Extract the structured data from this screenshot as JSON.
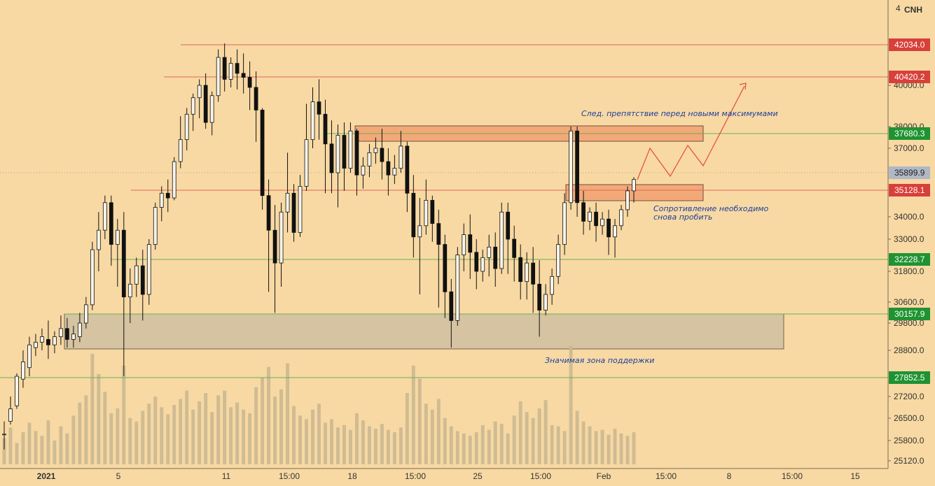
{
  "header": {
    "currency": "CNH",
    "corner_glyph": "4"
  },
  "colors": {
    "background": "#f8d9a3",
    "candle": "#111111",
    "volume": "#c9b691",
    "resistance_line": "#e0665a",
    "support_line": "#6ab04c",
    "red_badge": "#d8403a",
    "green_badge": "#1f9331",
    "price_badge": "#b0b8c6",
    "zone_fill": "#f3a977",
    "support_zone_fill": "#d6c3a1",
    "arrow": "#e44a3a",
    "annotation": "#1c3f9e"
  },
  "annotations": {
    "next_obstacle": "След. препятствие перед новыми максимумами",
    "resistance_line1": "Сопротивление необходимо",
    "resistance_line2": "снова пробить",
    "support_zone": "Значимая зона поддержки"
  },
  "chart_data": {
    "type": "candlestick",
    "ylim": [
      24850,
      43300
    ],
    "y_ticks": [
      {
        "value": 40000,
        "label": "40000.0"
      },
      {
        "value": 38000,
        "label": "38000.0"
      },
      {
        "value": 37000,
        "label": "37000.0"
      },
      {
        "value": 34000,
        "label": "34000.0"
      },
      {
        "value": 33000,
        "label": "33000.0"
      },
      {
        "value": 31800,
        "label": "31800.0"
      },
      {
        "value": 30600,
        "label": "30600.0"
      },
      {
        "value": 29800,
        "label": "29800.0"
      },
      {
        "value": 28800,
        "label": "28800.0"
      },
      {
        "value": 27200,
        "label": "27200.0"
      },
      {
        "value": 26500,
        "label": "26500.0"
      },
      {
        "value": 25800,
        "label": "25800.0"
      },
      {
        "value": 25120,
        "label": "25120.0"
      }
    ],
    "x_labels": [
      "2021",
      "5",
      "11",
      "15:00",
      "18",
      "15:00",
      "25",
      "15:00",
      "Feb",
      "15:00",
      "8",
      "15:00",
      "15"
    ],
    "levels": [
      {
        "value": 42034.0,
        "label": "42034.0",
        "kind": "resistance"
      },
      {
        "value": 40420.2,
        "label": "40420.2",
        "kind": "resistance"
      },
      {
        "value": 37680.3,
        "label": "37680.3",
        "kind": "support"
      },
      {
        "value": 35899.9,
        "label": "35899.9",
        "kind": "current"
      },
      {
        "value": 35128.1,
        "label": "35128.1",
        "kind": "resistance"
      },
      {
        "value": 32228.7,
        "label": "32228.7",
        "kind": "support"
      },
      {
        "value": 30157.9,
        "label": "30157.9",
        "kind": "support"
      },
      {
        "value": 27852.5,
        "label": "27852.5",
        "kind": "support"
      }
    ],
    "zones": [
      {
        "name": "next obstacle zone",
        "from": 37450,
        "to": 38000
      },
      {
        "name": "resistance zone",
        "from": 34750,
        "to": 35450
      },
      {
        "name": "support zone",
        "from": 28880,
        "to": 30150
      }
    ],
    "projection": [
      35900,
      37050,
      35670,
      37080,
      36400,
      39960
    ],
    "candles": [
      [
        26.0,
        26.4,
        26.0,
        25.5
      ],
      [
        26.4,
        27.2,
        26.8,
        26.3
      ],
      [
        26.9,
        28.0,
        27.9,
        26.8
      ],
      [
        27.8,
        28.8,
        28.4,
        27.5
      ],
      [
        28.2,
        29.3,
        29.0,
        27.9
      ],
      [
        28.9,
        29.4,
        29.1,
        28.6
      ],
      [
        29.1,
        29.6,
        29.3,
        28.8
      ],
      [
        29.2,
        29.9,
        29.0,
        28.5
      ],
      [
        29.0,
        29.5,
        29.3,
        28.7
      ],
      [
        29.3,
        30.1,
        29.6,
        29.0
      ],
      [
        29.6,
        30.0,
        29.2,
        28.9
      ],
      [
        29.2,
        29.7,
        29.4,
        28.9
      ],
      [
        29.3,
        30.2,
        29.8,
        29.1
      ],
      [
        29.8,
        30.8,
        30.5,
        29.6
      ],
      [
        30.5,
        32.9,
        32.6,
        30.3
      ],
      [
        32.6,
        34.2,
        33.4,
        31.8
      ],
      [
        33.4,
        34.9,
        34.6,
        33.0
      ],
      [
        34.6,
        34.9,
        32.8,
        32.0
      ],
      [
        32.8,
        33.9,
        33.4,
        31.2
      ],
      [
        33.4,
        34.2,
        30.8,
        27.9
      ],
      [
        30.8,
        31.9,
        31.3,
        29.8
      ],
      [
        31.3,
        32.3,
        32.0,
        30.8
      ],
      [
        32.0,
        32.6,
        30.9,
        29.9
      ],
      [
        30.9,
        33.0,
        32.8,
        30.5
      ],
      [
        32.8,
        34.6,
        34.4,
        32.6
      ],
      [
        34.4,
        35.3,
        35.0,
        33.8
      ],
      [
        35.0,
        35.6,
        34.8,
        34.2
      ],
      [
        34.8,
        36.6,
        36.4,
        34.7
      ],
      [
        36.4,
        38.5,
        37.4,
        36.1
      ],
      [
        37.4,
        38.9,
        38.6,
        36.9
      ],
      [
        38.6,
        39.6,
        39.4,
        37.8
      ],
      [
        39.4,
        40.3,
        40.0,
        38.4
      ],
      [
        40.0,
        40.6,
        38.2,
        37.9
      ],
      [
        38.2,
        39.7,
        39.5,
        37.6
      ],
      [
        39.5,
        41.8,
        41.4,
        39.2
      ],
      [
        41.4,
        42.1,
        40.3,
        39.7
      ],
      [
        40.3,
        41.4,
        41.1,
        39.9
      ],
      [
        41.1,
        41.8,
        40.6,
        39.8
      ],
      [
        40.6,
        41.6,
        40.4,
        39.6
      ],
      [
        40.4,
        41.2,
        39.9,
        38.8
      ],
      [
        39.9,
        40.7,
        38.8,
        37.3
      ],
      [
        38.8,
        38.9,
        34.9,
        34.3
      ],
      [
        34.9,
        35.6,
        33.4,
        31.0
      ],
      [
        33.4,
        34.5,
        32.1,
        30.2
      ],
      [
        32.1,
        34.6,
        34.2,
        31.2
      ],
      [
        34.2,
        36.8,
        35.0,
        33.3
      ],
      [
        35.0,
        35.4,
        33.3,
        32.9
      ],
      [
        33.3,
        35.8,
        35.3,
        33.1
      ],
      [
        35.3,
        39.1,
        37.4,
        35.1
      ],
      [
        37.4,
        39.9,
        39.2,
        37.0
      ],
      [
        39.2,
        40.3,
        38.6,
        37.4
      ],
      [
        38.6,
        39.3,
        37.2,
        35.0
      ],
      [
        37.2,
        38.3,
        35.9,
        35.0
      ],
      [
        35.9,
        38.1,
        37.6,
        34.4
      ],
      [
        37.6,
        38.2,
        36.1,
        35.1
      ],
      [
        36.1,
        38.2,
        37.8,
        35.9
      ],
      [
        37.8,
        37.9,
        35.8,
        34.9
      ],
      [
        35.8,
        36.6,
        36.2,
        35.2
      ],
      [
        36.2,
        37.2,
        36.8,
        35.7
      ],
      [
        36.8,
        37.5,
        37.0,
        36.3
      ],
      [
        37.0,
        37.9,
        36.4,
        35.6
      ],
      [
        36.4,
        37.0,
        35.8,
        34.9
      ],
      [
        35.8,
        36.7,
        36.1,
        35.4
      ],
      [
        36.1,
        37.8,
        37.1,
        35.9
      ],
      [
        37.1,
        37.3,
        35.0,
        34.2
      ],
      [
        35.0,
        35.8,
        33.1,
        32.3
      ],
      [
        33.1,
        34.8,
        33.6,
        30.9
      ],
      [
        33.6,
        35.6,
        34.7,
        33.2
      ],
      [
        34.7,
        34.9,
        33.7,
        32.9
      ],
      [
        33.7,
        34.3,
        32.8,
        30.4
      ],
      [
        32.8,
        33.2,
        31.0,
        30.0
      ],
      [
        31.0,
        31.5,
        29.9,
        28.9
      ],
      [
        29.9,
        32.7,
        32.4,
        29.7
      ],
      [
        32.4,
        33.7,
        33.2,
        31.8
      ],
      [
        33.2,
        34.1,
        32.5,
        31.5
      ],
      [
        32.5,
        33.0,
        31.8,
        31.1
      ],
      [
        31.8,
        32.6,
        32.3,
        31.4
      ],
      [
        32.3,
        33.2,
        32.7,
        31.6
      ],
      [
        32.7,
        33.3,
        31.9,
        31.2
      ],
      [
        31.9,
        34.6,
        34.2,
        31.7
      ],
      [
        34.2,
        34.6,
        33.0,
        31.7
      ],
      [
        33.0,
        33.6,
        32.3,
        31.4
      ],
      [
        32.3,
        32.8,
        31.4,
        30.7
      ],
      [
        31.4,
        32.5,
        32.1,
        30.7
      ],
      [
        32.1,
        32.7,
        31.3,
        30.2
      ],
      [
        31.3,
        32.2,
        30.3,
        29.3
      ],
      [
        30.3,
        31.3,
        30.9,
        30.1
      ],
      [
        30.9,
        31.9,
        31.6,
        30.5
      ],
      [
        31.6,
        33.2,
        32.8,
        31.3
      ],
      [
        32.8,
        35.0,
        34.6,
        32.4
      ],
      [
        34.6,
        38.0,
        37.8,
        34.3
      ],
      [
        37.8,
        38.0,
        34.6,
        34.0
      ],
      [
        34.6,
        35.1,
        33.8,
        33.2
      ],
      [
        33.8,
        34.4,
        34.2,
        33.4
      ],
      [
        34.2,
        34.6,
        33.6,
        32.9
      ],
      [
        33.6,
        34.2,
        33.9,
        33.2
      ],
      [
        33.9,
        34.3,
        33.1,
        32.4
      ],
      [
        33.1,
        33.9,
        33.6,
        32.3
      ],
      [
        33.6,
        34.5,
        34.3,
        33.4
      ],
      [
        34.3,
        35.3,
        35.1,
        34.0
      ],
      [
        35.1,
        35.7,
        35.6,
        34.6
      ]
    ],
    "volumes": [
      0.22,
      0.31,
      0.18,
      0.27,
      0.35,
      0.28,
      0.24,
      0.37,
      0.2,
      0.32,
      0.26,
      0.41,
      0.52,
      0.58,
      0.93,
      0.76,
      0.61,
      0.43,
      0.47,
      0.83,
      0.39,
      0.36,
      0.45,
      0.51,
      0.57,
      0.48,
      0.42,
      0.5,
      0.55,
      0.62,
      0.46,
      0.53,
      0.6,
      0.44,
      0.58,
      0.62,
      0.48,
      0.52,
      0.46,
      0.43,
      0.65,
      0.73,
      0.82,
      0.57,
      0.63,
      0.85,
      0.49,
      0.41,
      0.38,
      0.46,
      0.51,
      0.35,
      0.38,
      0.31,
      0.33,
      0.29,
      0.43,
      0.37,
      0.32,
      0.3,
      0.34,
      0.29,
      0.27,
      0.31,
      0.6,
      0.83,
      0.72,
      0.51,
      0.46,
      0.55,
      0.39,
      0.32,
      0.28,
      0.26,
      0.24,
      0.27,
      0.33,
      0.29,
      0.36,
      0.34,
      0.26,
      0.41,
      0.53,
      0.44,
      0.39,
      0.47,
      0.54,
      0.33,
      0.32,
      0.28,
      1.0,
      0.45,
      0.36,
      0.32,
      0.28,
      0.29,
      0.25,
      0.3,
      0.26,
      0.24,
      0.27
    ]
  }
}
